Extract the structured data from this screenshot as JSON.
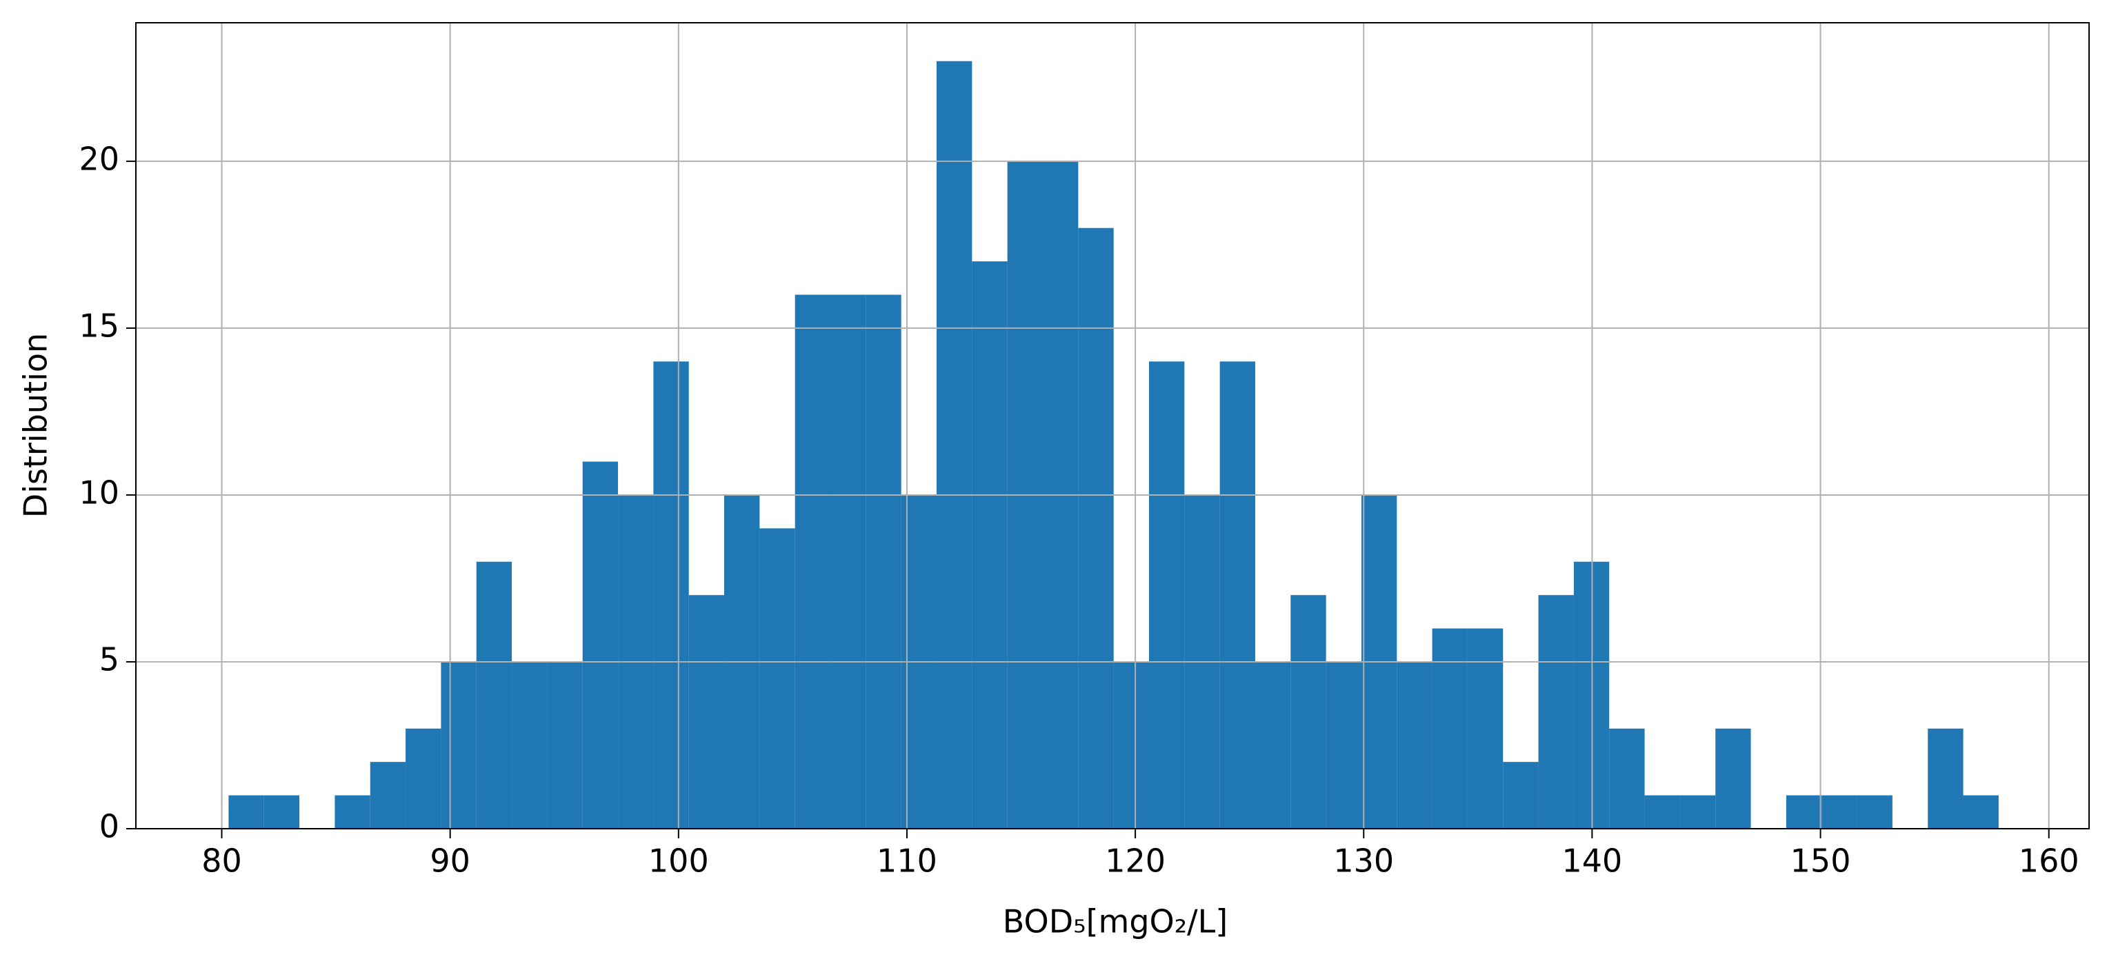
{
  "chart_data": {
    "type": "histogram",
    "xlabel": "BOD₅[mgO₂/L]",
    "ylabel": "Distribution",
    "color": "#1f77b4",
    "grid": true,
    "bins": [
      80.3,
      81.85,
      83.4,
      84.95,
      86.5,
      88.05,
      89.6,
      91.15,
      92.7,
      94.25,
      95.8,
      97.35,
      98.9,
      100.45,
      102,
      103.55,
      105.1,
      106.65,
      108.2,
      109.75,
      111.3,
      112.85,
      114.4,
      115.95,
      117.5,
      119.05,
      120.6,
      122.15,
      123.7,
      125.25,
      126.8,
      128.35,
      129.9,
      131.45,
      133,
      134.55,
      136.1,
      137.65,
      139.2,
      140.75,
      142.3,
      143.85,
      145.4,
      146.95,
      148.5,
      150.05,
      151.6,
      153.15,
      154.7,
      156.25,
      157.8
    ],
    "values": [
      1,
      1,
      0,
      1,
      2,
      3,
      5,
      8,
      5,
      5,
      11,
      10,
      14,
      7,
      10,
      9,
      16,
      16,
      16,
      10,
      23,
      17,
      20,
      20,
      18,
      5,
      14,
      10,
      14,
      5,
      7,
      5,
      10,
      5,
      6,
      6,
      2,
      7,
      8,
      3,
      1,
      1,
      3,
      0,
      1,
      1,
      1,
      0,
      3,
      1
    ],
    "xlim": [
      76.24,
      161.76
    ],
    "ylim": [
      0,
      24.15
    ],
    "xticks": [
      80,
      90,
      100,
      110,
      120,
      130,
      140,
      150,
      160
    ],
    "yticks": [
      0,
      5,
      10,
      15,
      20
    ]
  }
}
